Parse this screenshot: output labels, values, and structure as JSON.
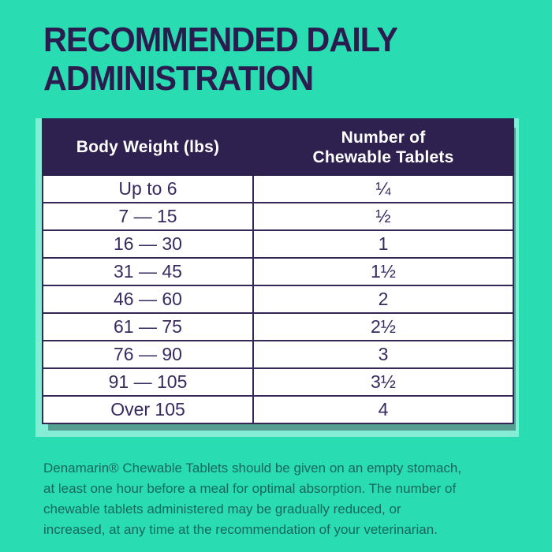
{
  "page": {
    "background_color": "#29DCB2"
  },
  "title": {
    "lines": [
      "RECOMMENDED DAILY",
      "ADMINISTRATION"
    ],
    "color": "#2B1C4F"
  },
  "table": {
    "colors": {
      "header_background": "#2E2150",
      "header_text": "#FFFFFF",
      "border": "#342657",
      "cell_background": "#FFFFFF",
      "cell_text": "#372A5F"
    },
    "header": {
      "col1": "Body Weight (lbs)",
      "col2_lines": [
        "Number of",
        "Chewable Tablets"
      ]
    },
    "rows": [
      {
        "weight": "Up to 6",
        "tablets": "¼"
      },
      {
        "weight": "7 — 15",
        "tablets": "½"
      },
      {
        "weight": "16 — 30",
        "tablets": "1"
      },
      {
        "weight": "31 — 45",
        "tablets": "1½"
      },
      {
        "weight": "46 — 60",
        "tablets": "2"
      },
      {
        "weight": "61 — 75",
        "tablets": "2½"
      },
      {
        "weight": "76 — 90",
        "tablets": "3"
      },
      {
        "weight": "91 — 105",
        "tablets": "3½"
      },
      {
        "weight": "Over 105",
        "tablets": "4"
      }
    ]
  },
  "footnote": {
    "color": "#15695B",
    "lines": [
      "Denamarin® Chewable Tablets should be given on an empty stomach,",
      "at least one hour before a meal for optimal absorption. The number of",
      "chewable tablets administered may be gradually reduced, or",
      "increased, at any time at the recommendation of your veterinarian."
    ]
  }
}
